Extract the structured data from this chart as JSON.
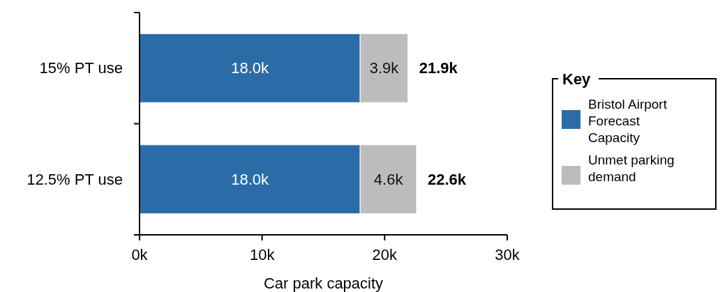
{
  "chart_data": {
    "type": "bar",
    "orientation": "horizontal",
    "stacked": true,
    "xlabel": "Car park capacity",
    "categories": [
      "15% PT use",
      "12.5% PT use"
    ],
    "series": [
      {
        "name": "Bristol Airport Forecast Capacity",
        "color": "#2b6ca8",
        "values": [
          18000,
          18000
        ],
        "value_labels": [
          "18.0k",
          "18.0k"
        ]
      },
      {
        "name": "Unmet parking demand",
        "color": "#bcbcbc",
        "values": [
          3900,
          4600
        ],
        "value_labels": [
          "3.9k",
          "4.6k"
        ]
      }
    ],
    "totals": [
      "21.9k",
      "22.6k"
    ],
    "xlim": [
      0,
      30000
    ],
    "xticks": [
      {
        "value": 0,
        "label": "0k"
      },
      {
        "value": 10000,
        "label": "10k"
      },
      {
        "value": 20000,
        "label": "20k"
      },
      {
        "value": 30000,
        "label": "30k"
      }
    ],
    "grid": false,
    "legend": "right",
    "legend_title": "Key"
  }
}
